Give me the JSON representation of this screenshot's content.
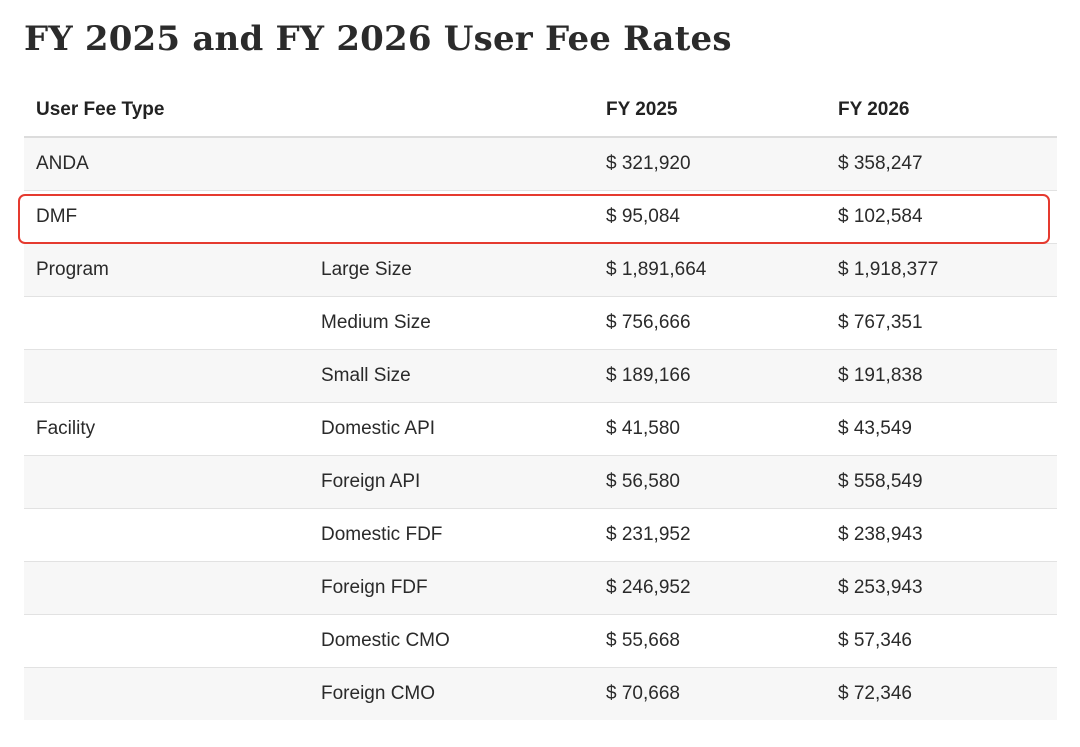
{
  "title": "FY 2025 and FY 2026 User Fee Rates",
  "table": {
    "headers": [
      "User Fee Type",
      "",
      "FY 2025",
      "FY 2026"
    ],
    "rows": [
      {
        "type": "ANDA",
        "subtype": "",
        "fy2025": "$ 321,920",
        "fy2026": "$ 358,247"
      },
      {
        "type": "DMF",
        "subtype": "",
        "fy2025": "$ 95,084",
        "fy2026": "$ 102,584"
      },
      {
        "type": "Program",
        "subtype": "Large Size",
        "fy2025": "$ 1,891,664",
        "fy2026": "$ 1,918,377"
      },
      {
        "type": "",
        "subtype": "Medium Size",
        "fy2025": "$ 756,666",
        "fy2026": "$ 767,351"
      },
      {
        "type": "",
        "subtype": "Small Size",
        "fy2025": "$ 189,166",
        "fy2026": "$ 191,838"
      },
      {
        "type": "Facility",
        "subtype": "Domestic API",
        "fy2025": "$ 41,580",
        "fy2026": "$ 43,549"
      },
      {
        "type": "",
        "subtype": "Foreign API",
        "fy2025": "$ 56,580",
        "fy2026": "$ 558,549"
      },
      {
        "type": "",
        "subtype": "Domestic FDF",
        "fy2025": "$ 231,952",
        "fy2026": "$ 238,943"
      },
      {
        "type": "",
        "subtype": "Foreign FDF",
        "fy2025": "$ 246,952",
        "fy2026": "$ 253,943"
      },
      {
        "type": "",
        "subtype": "Domestic CMO",
        "fy2025": "$ 55,668",
        "fy2026": "$ 57,346"
      },
      {
        "type": "",
        "subtype": "Foreign CMO",
        "fy2025": "$ 70,668",
        "fy2026": "$ 72,346"
      }
    ]
  },
  "highlight": {
    "row": "DMF",
    "color": "#e53a2f"
  }
}
